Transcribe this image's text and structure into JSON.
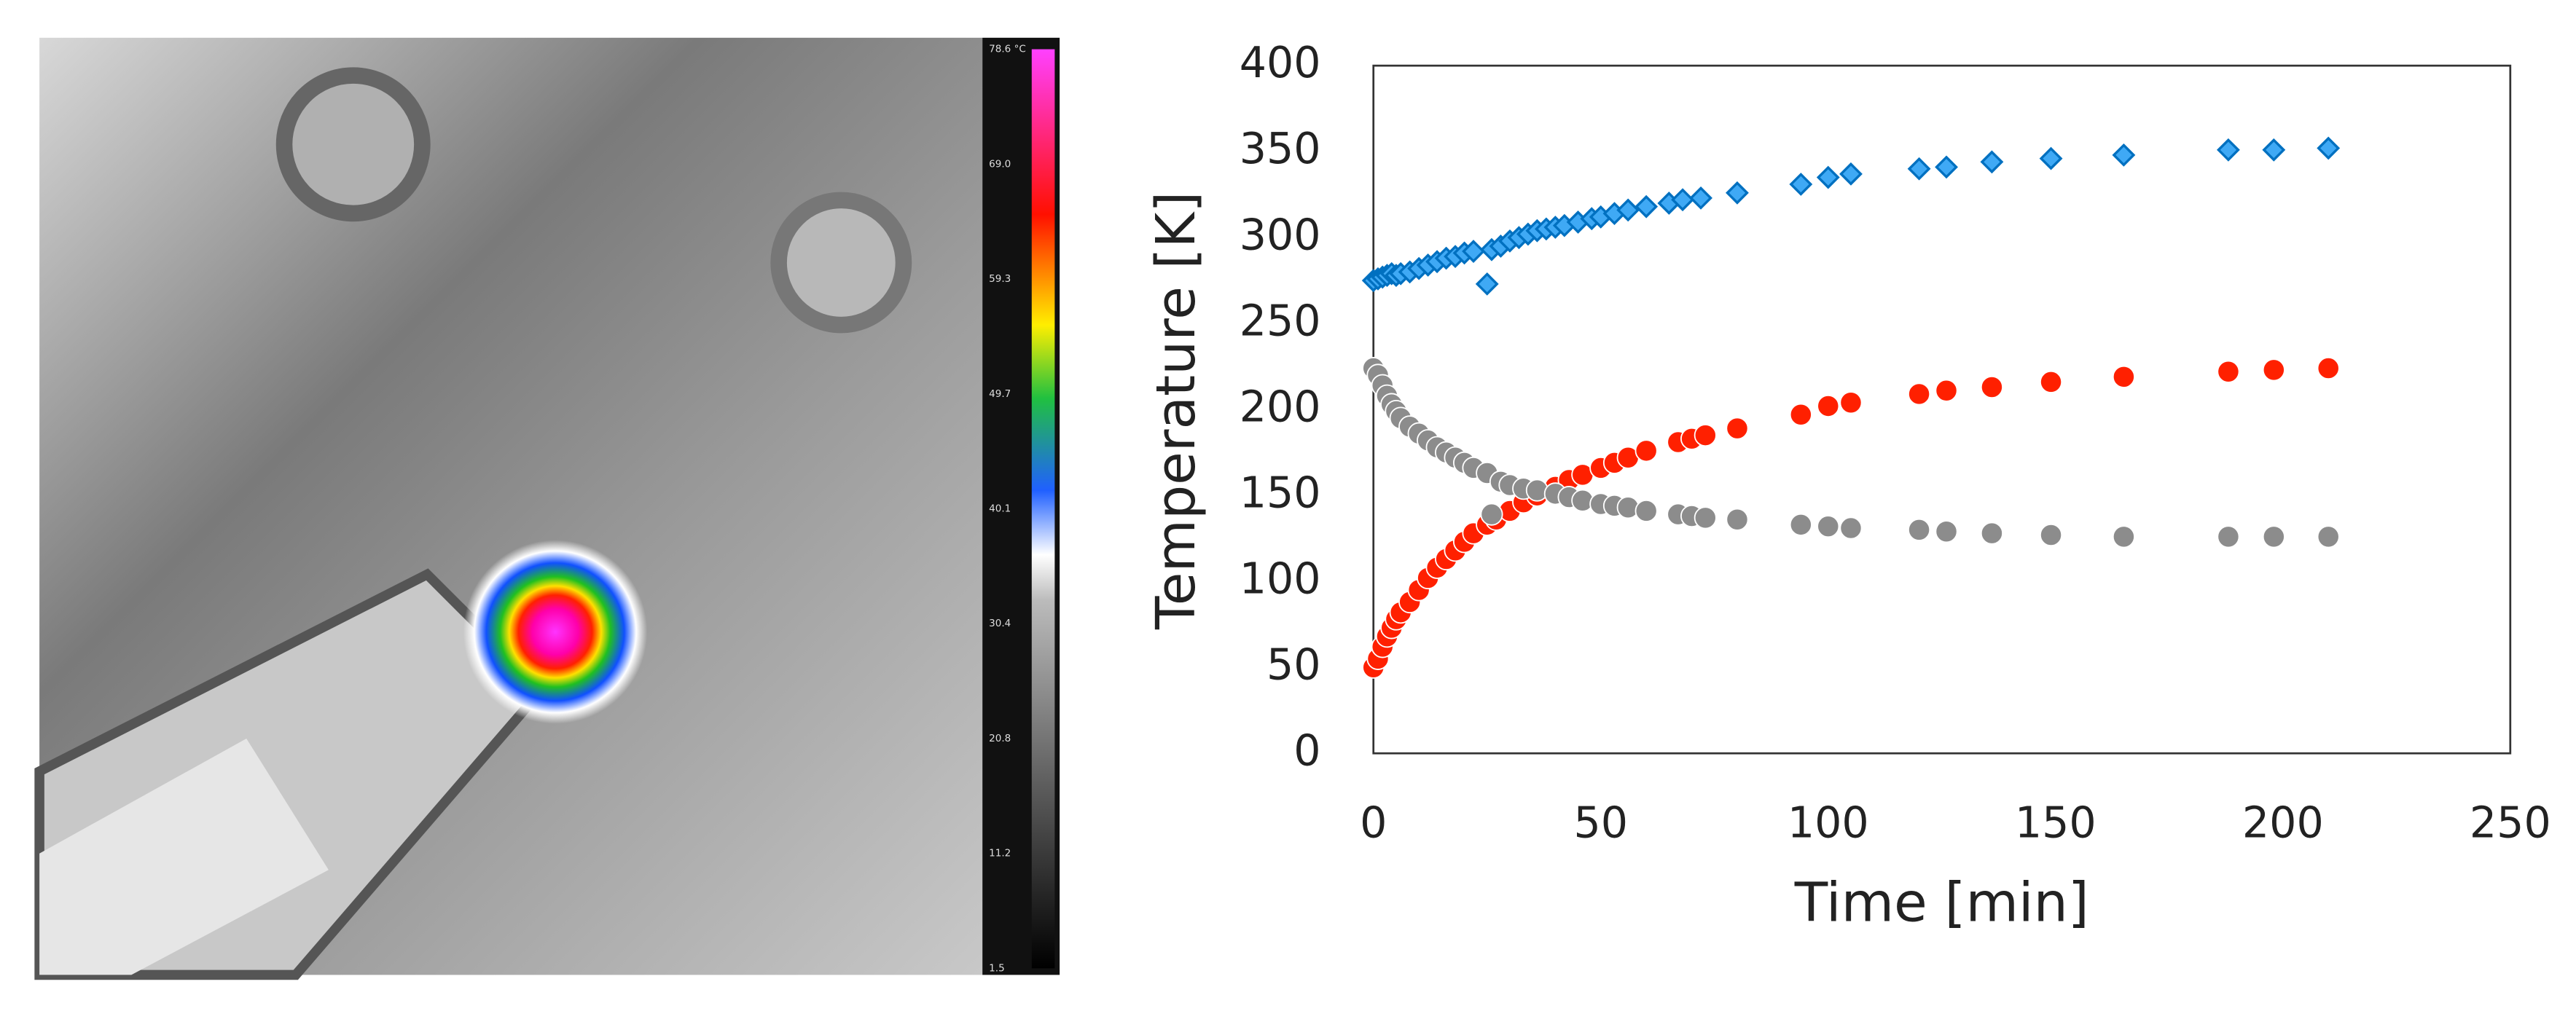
{
  "thermal_image": {
    "colorbar_labels": [
      "78.6 °C",
      "69.0",
      "59.3",
      "49.7",
      "40.1",
      "30.4",
      "20.8",
      "11.2",
      "1.5"
    ]
  },
  "chart_data": {
    "type": "scatter",
    "xlabel": "Time [min]",
    "ylabel": "Temperature [K]",
    "xlim": [
      0,
      250
    ],
    "xticks": [
      0,
      50,
      100,
      150,
      200,
      250
    ],
    "ylim": [
      0,
      400
    ],
    "yticks": [
      0,
      50,
      100,
      150,
      200,
      250,
      300,
      350,
      400
    ],
    "grid": false,
    "series": [
      {
        "color": "#0070c0",
        "fill": "#3fa9f5",
        "marker": "diamond",
        "x": [
          0,
          1,
          2,
          3,
          4,
          5,
          6,
          8,
          10,
          12,
          14,
          16,
          18,
          20,
          22,
          25,
          26,
          28,
          30,
          32,
          34,
          36,
          38,
          40,
          42,
          45,
          48,
          50,
          53,
          56,
          60,
          65,
          68,
          72,
          80,
          94,
          100,
          105,
          120,
          126,
          136,
          149,
          165,
          188,
          198,
          210
        ],
        "values": [
          275,
          276,
          277,
          278,
          279,
          278,
          279,
          280,
          282,
          284,
          286,
          288,
          289,
          291,
          292,
          273,
          293,
          295,
          298,
          300,
          302,
          304,
          305,
          306,
          307,
          309,
          311,
          312,
          314,
          316,
          318,
          320,
          322,
          323,
          326,
          331,
          335,
          337,
          340,
          341,
          344,
          346,
          348,
          351,
          351,
          352
        ]
      },
      {
        "color": "#ff2000",
        "fill": "#ff2000",
        "marker": "circle",
        "x": [
          0,
          1,
          2,
          3,
          4,
          5,
          6,
          8,
          10,
          12,
          14,
          16,
          18,
          20,
          22,
          25,
          27,
          30,
          33,
          36,
          40,
          43,
          46,
          50,
          53,
          56,
          60,
          67,
          70,
          73,
          80,
          94,
          100,
          105,
          120,
          126,
          136,
          149,
          165,
          188,
          198,
          210
        ],
        "values": [
          50,
          55,
          62,
          68,
          73,
          78,
          82,
          88,
          95,
          102,
          108,
          113,
          118,
          123,
          128,
          133,
          136,
          141,
          146,
          150,
          155,
          159,
          162,
          166,
          169,
          172,
          176,
          181,
          183,
          185,
          189,
          197,
          202,
          204,
          209,
          211,
          213,
          216,
          219,
          222,
          223,
          224
        ]
      },
      {
        "color": "#8c8c8c",
        "fill": "#8c8c8c",
        "marker": "circle",
        "x": [
          0,
          1,
          2,
          3,
          4,
          5,
          6,
          8,
          10,
          12,
          14,
          16,
          18,
          20,
          22,
          25,
          26,
          28,
          30,
          33,
          36,
          40,
          43,
          46,
          50,
          53,
          56,
          60,
          67,
          70,
          73,
          80,
          94,
          100,
          105,
          120,
          126,
          136,
          149,
          165,
          188,
          198,
          210
        ],
        "values": [
          224,
          220,
          214,
          208,
          203,
          199,
          195,
          190,
          186,
          182,
          178,
          175,
          172,
          169,
          166,
          163,
          139,
          158,
          156,
          154,
          153,
          151,
          149,
          147,
          145,
          144,
          143,
          141,
          139,
          138,
          137,
          136,
          133,
          132,
          131,
          130,
          129,
          128,
          127,
          126,
          126,
          126,
          126
        ]
      }
    ]
  }
}
